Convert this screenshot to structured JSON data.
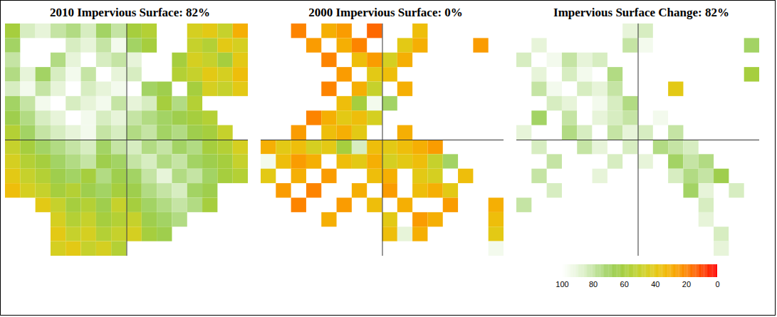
{
  "chart_data": [
    {
      "type": "heatmap",
      "title": "2010 Impervious Surface: 82%",
      "tick_labels": false,
      "cells": [
        [
          60,
          85,
          90,
          80,
          75,
          85,
          70,
          80,
          60,
          55,
          null,
          null,
          45,
          40,
          50,
          30
        ],
        [
          70,
          null,
          null,
          null,
          85,
          90,
          80,
          95,
          70,
          60,
          null,
          null,
          50,
          55,
          40,
          45
        ],
        [
          80,
          null,
          null,
          75,
          90,
          100,
          85,
          80,
          90,
          null,
          null,
          60,
          45,
          50,
          60,
          40
        ],
        [
          75,
          90,
          70,
          85,
          95,
          80,
          100,
          90,
          85,
          null,
          null,
          55,
          50,
          40,
          45,
          35
        ],
        [
          85,
          95,
          80,
          90,
          100,
          85,
          90,
          95,
          100,
          70,
          65,
          null,
          60,
          45,
          50,
          40
        ],
        [
          70,
          80,
          95,
          100,
          85,
          90,
          95,
          80,
          90,
          85,
          60,
          75,
          55,
          null,
          null,
          null
        ],
        [
          65,
          75,
          85,
          90,
          100,
          95,
          85,
          90,
          80,
          75,
          70,
          65,
          60,
          55,
          null,
          null
        ],
        [
          55,
          70,
          80,
          85,
          90,
          95,
          80,
          85,
          75,
          80,
          70,
          75,
          65,
          60,
          50,
          null
        ],
        [
          50,
          60,
          70,
          75,
          80,
          85,
          70,
          80,
          85,
          75,
          80,
          70,
          75,
          60,
          55,
          45
        ],
        [
          45,
          55,
          60,
          70,
          75,
          80,
          65,
          70,
          80,
          85,
          75,
          80,
          70,
          65,
          60,
          50
        ],
        [
          40,
          50,
          55,
          65,
          70,
          60,
          75,
          65,
          70,
          80,
          90,
          75,
          80,
          70,
          60,
          55
        ],
        [
          35,
          45,
          50,
          60,
          55,
          65,
          70,
          60,
          65,
          75,
          80,
          85,
          70,
          65,
          null,
          null
        ],
        [
          null,
          null,
          40,
          50,
          60,
          55,
          65,
          50,
          60,
          70,
          75,
          80,
          75,
          60,
          null,
          null
        ],
        [
          null,
          null,
          null,
          45,
          55,
          50,
          60,
          55,
          50,
          65,
          70,
          75,
          null,
          null,
          null,
          null
        ],
        [
          null,
          null,
          null,
          40,
          50,
          45,
          55,
          50,
          45,
          60,
          65,
          null,
          null,
          null,
          null,
          null
        ],
        [
          null,
          null,
          null,
          45,
          40,
          50,
          45,
          55,
          null,
          null,
          null,
          null,
          null,
          null,
          null,
          null
        ]
      ]
    },
    {
      "type": "heatmap",
      "title": "2000 Impervious Surface: 0%",
      "tick_labels": false,
      "cells": [
        [
          null,
          null,
          20,
          null,
          30,
          25,
          null,
          15,
          null,
          null,
          35,
          null,
          null,
          null,
          null,
          null
        ],
        [
          null,
          null,
          null,
          25,
          null,
          30,
          20,
          null,
          null,
          40,
          30,
          null,
          null,
          null,
          25,
          null
        ],
        [
          null,
          null,
          null,
          null,
          20,
          null,
          35,
          25,
          45,
          30,
          null,
          null,
          null,
          null,
          null,
          null
        ],
        [
          null,
          null,
          null,
          null,
          null,
          25,
          null,
          40,
          35,
          null,
          null,
          null,
          null,
          null,
          null,
          null
        ],
        [
          null,
          null,
          null,
          null,
          20,
          null,
          30,
          50,
          null,
          30,
          null,
          null,
          null,
          null,
          null,
          null
        ],
        [
          null,
          null,
          null,
          null,
          null,
          35,
          60,
          95,
          70,
          null,
          null,
          null,
          null,
          null,
          null,
          null
        ],
        [
          null,
          null,
          null,
          20,
          30,
          40,
          35,
          45,
          null,
          null,
          null,
          null,
          null,
          null,
          null,
          null
        ],
        [
          null,
          null,
          25,
          null,
          35,
          30,
          40,
          null,
          null,
          30,
          null,
          null,
          null,
          null,
          null,
          null
        ],
        [
          30,
          40,
          35,
          45,
          40,
          60,
          85,
          35,
          40,
          35,
          30,
          25,
          null,
          null,
          null,
          null
        ],
        [
          95,
          35,
          25,
          30,
          null,
          35,
          40,
          30,
          45,
          40,
          35,
          50,
          70,
          null,
          null,
          null
        ],
        [
          40,
          null,
          30,
          null,
          25,
          null,
          null,
          35,
          30,
          null,
          40,
          45,
          100,
          35,
          null,
          null
        ],
        [
          null,
          25,
          null,
          20,
          null,
          null,
          30,
          null,
          25,
          null,
          35,
          30,
          40,
          null,
          null,
          null
        ],
        [
          null,
          null,
          20,
          null,
          null,
          25,
          null,
          35,
          null,
          30,
          null,
          null,
          25,
          null,
          null,
          30
        ],
        [
          null,
          null,
          null,
          null,
          30,
          null,
          null,
          null,
          40,
          null,
          25,
          30,
          null,
          null,
          null,
          35
        ],
        [
          null,
          null,
          null,
          null,
          null,
          null,
          null,
          null,
          35,
          90,
          30,
          null,
          null,
          null,
          null,
          40
        ],
        [
          null,
          null,
          null,
          null,
          null,
          null,
          null,
          null,
          null,
          null,
          null,
          null,
          null,
          null,
          null,
          95
        ]
      ]
    },
    {
      "type": "heatmap",
      "title": "Impervious Surface Change: 82%",
      "tick_labels": false,
      "cells": [
        [
          null,
          null,
          null,
          null,
          null,
          null,
          null,
          90,
          85,
          null,
          null,
          null,
          null,
          null,
          null,
          null
        ],
        [
          null,
          90,
          null,
          null,
          null,
          null,
          null,
          80,
          95,
          null,
          null,
          null,
          null,
          null,
          null,
          70
        ],
        [
          85,
          100,
          95,
          80,
          90,
          85,
          null,
          null,
          null,
          null,
          null,
          null,
          null,
          null,
          null,
          null
        ],
        [
          null,
          90,
          100,
          85,
          95,
          null,
          75,
          null,
          null,
          null,
          null,
          null,
          null,
          null,
          null,
          60
        ],
        [
          null,
          80,
          95,
          100,
          85,
          90,
          80,
          null,
          null,
          null,
          40,
          null,
          null,
          null,
          null,
          null
        ],
        [
          null,
          null,
          85,
          90,
          100,
          95,
          85,
          75,
          null,
          null,
          null,
          null,
          null,
          null,
          null,
          null
        ],
        [
          null,
          70,
          null,
          80,
          100,
          90,
          85,
          80,
          null,
          95,
          null,
          null,
          null,
          null,
          null,
          null
        ],
        [
          90,
          null,
          null,
          75,
          85,
          100,
          80,
          90,
          85,
          null,
          80,
          null,
          null,
          null,
          null,
          null
        ],
        [
          null,
          85,
          null,
          null,
          80,
          90,
          null,
          85,
          null,
          75,
          80,
          85,
          null,
          null,
          null,
          null
        ],
        [
          null,
          null,
          80,
          null,
          null,
          null,
          85,
          null,
          90,
          null,
          70,
          80,
          75,
          null,
          null,
          null
        ],
        [
          null,
          80,
          null,
          null,
          null,
          90,
          null,
          null,
          null,
          null,
          85,
          75,
          80,
          65,
          null,
          null
        ],
        [
          null,
          null,
          85,
          null,
          null,
          null,
          null,
          null,
          null,
          null,
          null,
          70,
          90,
          null,
          85,
          null
        ],
        [
          80,
          null,
          null,
          null,
          null,
          null,
          null,
          null,
          null,
          null,
          null,
          null,
          85,
          100,
          null,
          null
        ],
        [
          null,
          null,
          null,
          null,
          null,
          null,
          null,
          null,
          null,
          null,
          null,
          null,
          90,
          null,
          null,
          null
        ],
        [
          null,
          null,
          null,
          null,
          null,
          null,
          null,
          null,
          null,
          null,
          null,
          null,
          null,
          85,
          100,
          null
        ],
        [
          null,
          null,
          null,
          null,
          null,
          null,
          null,
          null,
          null,
          null,
          null,
          null,
          null,
          90,
          null,
          null
        ]
      ]
    }
  ],
  "colorbar": {
    "range": [
      100,
      0
    ],
    "ticks": [
      100,
      80,
      60,
      40,
      20,
      0
    ]
  }
}
